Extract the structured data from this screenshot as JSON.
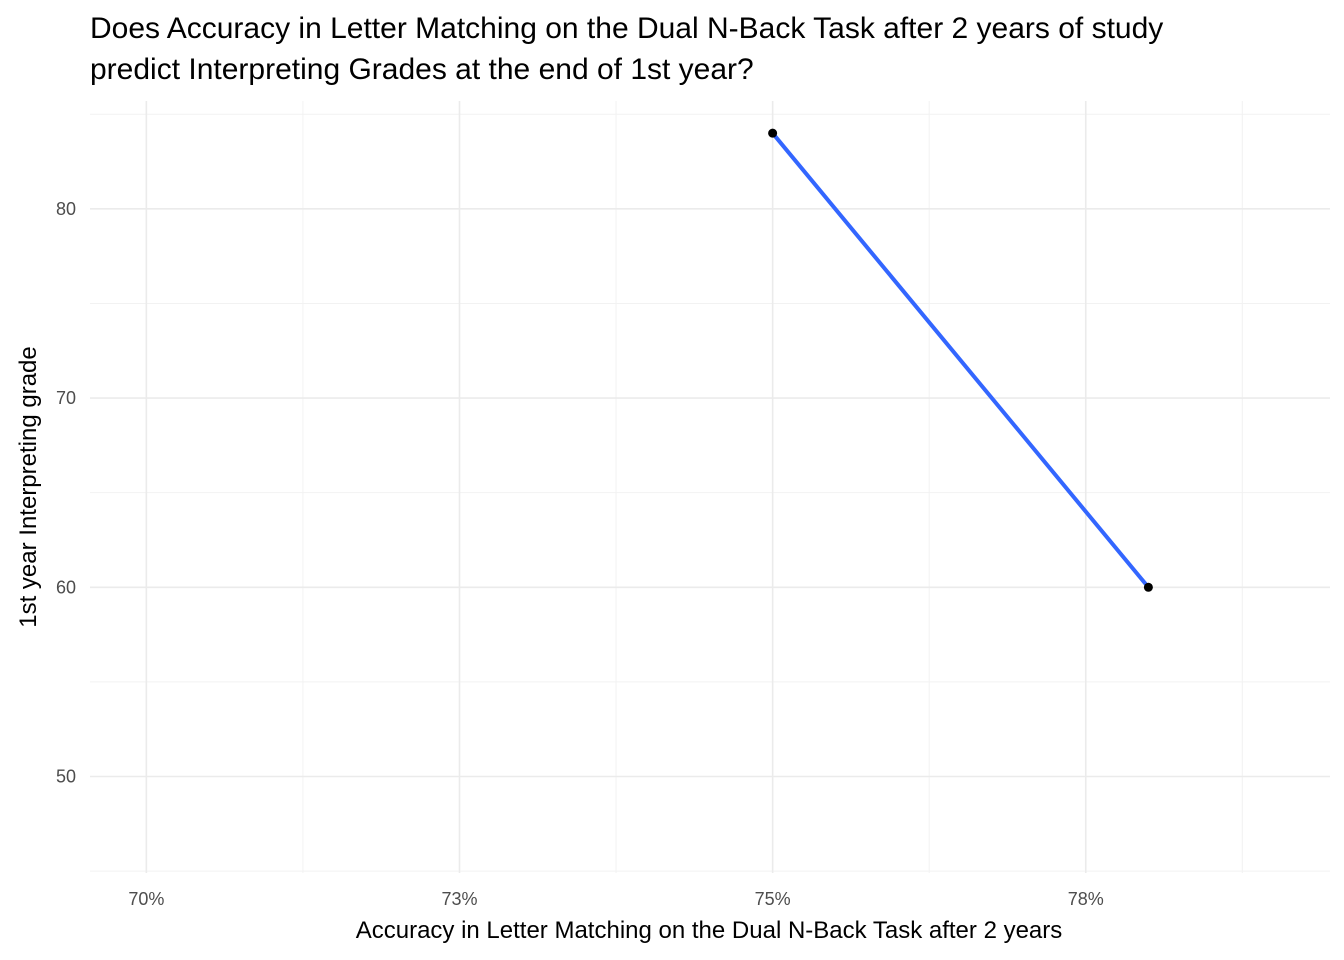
{
  "chart_data": {
    "type": "line",
    "title_lines": [
      "Does Accuracy in Letter Matching on the Dual N-Back Task after 2 years of study",
      "predict Interpreting Grades at the end of 1st year?"
    ],
    "xlabel": "Accuracy in Letter Matching on the Dual N-Back Task after 2 years",
    "ylabel": "1st year Interpreting grade",
    "x_ticks": [
      {
        "value": 0.7,
        "label": "70%"
      },
      {
        "value": 0.725,
        "label": "73%"
      },
      {
        "value": 0.75,
        "label": "75%"
      },
      {
        "value": 0.775,
        "label": "78%"
      }
    ],
    "y_ticks": [
      {
        "value": 50,
        "label": "50"
      },
      {
        "value": 60,
        "label": "60"
      },
      {
        "value": 70,
        "label": "70"
      },
      {
        "value": 80,
        "label": "80"
      }
    ],
    "xlim": [
      0.6955,
      0.7945
    ],
    "ylim": [
      44.9,
      85.7
    ],
    "grid": true,
    "points": [
      {
        "x": 0.75,
        "y": 84
      },
      {
        "x": 0.78,
        "y": 60
      }
    ],
    "fit_line": {
      "x": [
        0.75,
        0.78
      ],
      "y": [
        84,
        60
      ]
    },
    "colors": {
      "points": "#000000",
      "fit_line": "#3366ff",
      "grid_major": "#ebebeb",
      "grid_minor": "#f2f2f2",
      "tick_text": "#4d4d4d"
    }
  }
}
